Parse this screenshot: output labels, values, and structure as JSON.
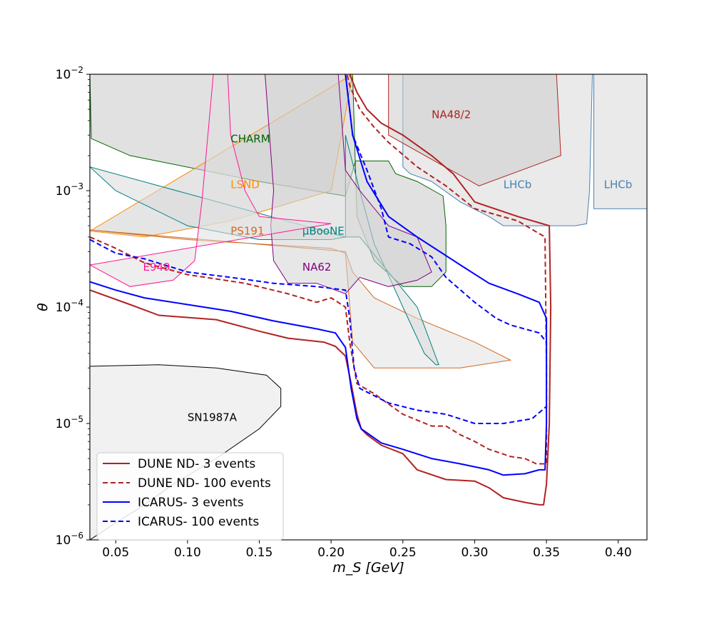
{
  "chart_data": {
    "type": "line",
    "title": "",
    "xlabel": "m_S [GeV]",
    "ylabel": "θ",
    "xscale": "linear",
    "yscale": "log",
    "xlim": [
      0.032,
      0.42
    ],
    "ylim": [
      1e-06,
      0.01
    ],
    "x_ticks": [
      0.05,
      0.1,
      0.15,
      0.2,
      0.25,
      0.3,
      0.35,
      0.4
    ],
    "x_tick_labels": [
      "0.05",
      "0.10",
      "0.15",
      "0.20",
      "0.25",
      "0.30",
      "0.35",
      "0.40"
    ],
    "y_ticks": [
      1e-06,
      1e-05,
      0.0001,
      0.001,
      0.01
    ],
    "y_tick_labels": [
      {
        "base": "10",
        "exp": "−6"
      },
      {
        "base": "10",
        "exp": "−5"
      },
      {
        "base": "10",
        "exp": "−4"
      },
      {
        "base": "10",
        "exp": "−3"
      },
      {
        "base": "10",
        "exp": "−2"
      }
    ],
    "regions": [
      {
        "name": "LHCb",
        "label": "LHCb",
        "color": "#4682b4",
        "fill": "#d8d8d8",
        "label_at": [
          0.39,
          0.00105
        ],
        "points": [
          [
            0.383,
            0.01
          ],
          [
            0.383,
            0.0007
          ],
          [
            0.42,
            0.0007
          ],
          [
            0.42,
            0.01
          ]
        ]
      },
      {
        "name": "LHCb",
        "label": "LHCb",
        "color": "#4682b4",
        "fill": "#d8d8d8",
        "label_at": [
          0.32,
          0.00105
        ],
        "points": [
          [
            0.25,
            0.01
          ],
          [
            0.25,
            0.0016
          ],
          [
            0.255,
            0.0014
          ],
          [
            0.27,
            0.0012
          ],
          [
            0.29,
            0.0008
          ],
          [
            0.31,
            0.0006
          ],
          [
            0.32,
            0.0005
          ],
          [
            0.34,
            0.0005
          ],
          [
            0.37,
            0.0005
          ],
          [
            0.378,
            0.00052
          ],
          [
            0.38,
            0.001
          ],
          [
            0.382,
            0.01
          ]
        ]
      },
      {
        "name": "NA48/2",
        "label": "NA48/2",
        "color": "#b22222",
        "fill": "#cccccc",
        "label_at": [
          0.27,
          0.0042
        ],
        "points": [
          [
            0.24,
            0.01
          ],
          [
            0.24,
            0.003
          ],
          [
            0.303,
            0.0011
          ],
          [
            0.36,
            0.002
          ],
          [
            0.357,
            0.01
          ]
        ]
      },
      {
        "name": "CHARM",
        "label": "CHARM",
        "color": "#006400",
        "fill": "#c8c8c8",
        "label_at": [
          0.13,
          0.0026
        ],
        "points": [
          [
            0.032,
            0.01
          ],
          [
            0.033,
            0.0028
          ],
          [
            0.06,
            0.002
          ],
          [
            0.15,
            0.0012
          ],
          [
            0.21,
            0.0009
          ],
          [
            0.217,
            0.0018
          ],
          [
            0.24,
            0.0018
          ],
          [
            0.245,
            0.0014
          ],
          [
            0.26,
            0.0012
          ],
          [
            0.278,
            0.0009
          ],
          [
            0.28,
            0.0005
          ],
          [
            0.28,
            0.0002
          ],
          [
            0.27,
            0.00015
          ],
          [
            0.25,
            0.00015
          ],
          [
            0.23,
            0.00025
          ],
          [
            0.218,
            0.0006
          ],
          [
            0.215,
            0.01
          ]
        ]
      },
      {
        "name": "LSND",
        "label": "LSND",
        "color": "#ff8c00",
        "fill": "#d0d0d0",
        "label_at": [
          0.13,
          0.00105
        ],
        "points": [
          [
            0.032,
            0.00045
          ],
          [
            0.07,
            0.0004
          ],
          [
            0.13,
            0.00055
          ],
          [
            0.2,
            0.001
          ],
          [
            0.215,
            0.01
          ]
        ]
      },
      {
        "name": "PS191",
        "label": "PS191",
        "color": "#d2691e",
        "fill": "#e2e2e2",
        "label_at": [
          0.13,
          0.00042
        ],
        "points": [
          [
            0.032,
            0.00046
          ],
          [
            0.1,
            0.00038
          ],
          [
            0.2,
            0.00032
          ],
          [
            0.21,
            0.00029
          ],
          [
            0.215,
            5e-05
          ],
          [
            0.23,
            3e-05
          ],
          [
            0.29,
            3e-05
          ],
          [
            0.325,
            3.5e-05
          ],
          [
            0.3,
            5e-05
          ],
          [
            0.26,
            8e-05
          ],
          [
            0.23,
            0.00012
          ],
          [
            0.215,
            0.0002
          ],
          [
            0.21,
            0.0003
          ]
        ]
      },
      {
        "name": "MicroBooNE",
        "label": "μBooNE",
        "color": "#008080",
        "fill": "#dadada",
        "label_at": [
          0.18,
          0.00042
        ],
        "points": [
          [
            0.032,
            0.0016
          ],
          [
            0.05,
            0.001
          ],
          [
            0.1,
            0.0005
          ],
          [
            0.15,
            0.00038
          ],
          [
            0.2,
            0.00038
          ],
          [
            0.21,
            0.0004
          ],
          [
            0.21,
            0.003
          ],
          [
            0.22,
            0.001
          ],
          [
            0.23,
            0.00035
          ],
          [
            0.25,
            0.0001
          ],
          [
            0.265,
            4e-05
          ],
          [
            0.273,
            3.2e-05
          ],
          [
            0.275,
            3.2e-05
          ],
          [
            0.26,
            0.0001
          ],
          [
            0.22,
            0.0004
          ],
          [
            0.21,
            0.0004
          ]
        ]
      },
      {
        "name": "NA62",
        "label": "NA62",
        "color": "#800080",
        "fill": "#d4d4d4",
        "label_at": [
          0.18,
          0.000205
        ],
        "points": [
          [
            0.154,
            0.01
          ],
          [
            0.16,
            0.001
          ],
          [
            0.158,
            0.0005
          ],
          [
            0.16,
            0.00025
          ],
          [
            0.17,
            0.00016
          ],
          [
            0.19,
            0.00016
          ],
          [
            0.21,
            0.00013
          ],
          [
            0.22,
            0.00018
          ],
          [
            0.24,
            0.00015
          ],
          [
            0.26,
            0.00017
          ],
          [
            0.27,
            0.0002
          ],
          [
            0.26,
            0.0004
          ],
          [
            0.24,
            0.0005
          ],
          [
            0.22,
            0.001
          ],
          [
            0.21,
            0.0015
          ],
          [
            0.205,
            0.01
          ]
        ]
      },
      {
        "name": "E949",
        "label": "E949",
        "color": "#ff1493",
        "fill": "#e0e0e0",
        "label_at": [
          0.069,
          0.000205
        ],
        "points": [
          [
            0.032,
            0.00023
          ],
          [
            0.06,
            0.00015
          ],
          [
            0.09,
            0.00017
          ],
          [
            0.105,
            0.00025
          ],
          [
            0.11,
            0.0008
          ],
          [
            0.118,
            0.01
          ],
          [
            0.128,
            0.01
          ],
          [
            0.13,
            0.003
          ],
          [
            0.14,
            0.001
          ],
          [
            0.15,
            0.0006
          ],
          [
            0.18,
            0.00055
          ],
          [
            0.2,
            0.00052
          ]
        ]
      },
      {
        "name": "SN1987A",
        "label": "SN1987A",
        "color": "#000000",
        "fill": "#e6e6e6",
        "label_at": [
          0.1,
          1.05e-05
        ],
        "points": [
          [
            0.032,
            3.1e-05
          ],
          [
            0.08,
            3.2e-05
          ],
          [
            0.12,
            3e-05
          ],
          [
            0.155,
            2.6e-05
          ],
          [
            0.165,
            2e-05
          ],
          [
            0.165,
            1.4e-05
          ],
          [
            0.15,
            9e-06
          ],
          [
            0.12,
            5e-06
          ],
          [
            0.09,
            3e-06
          ],
          [
            0.07,
            2e-06
          ],
          [
            0.05,
            1.4e-06
          ],
          [
            0.032,
            1e-06
          ]
        ]
      }
    ],
    "series": [
      {
        "name": "DUNE ND- 3 events",
        "color": "#b22222",
        "dash": "solid",
        "points": [
          [
            0.032,
            0.00014
          ],
          [
            0.06,
            0.000105
          ],
          [
            0.08,
            8.5e-05
          ],
          [
            0.12,
            7.8e-05
          ],
          [
            0.15,
            6.2e-05
          ],
          [
            0.17,
            5.4e-05
          ],
          [
            0.195,
            5e-05
          ],
          [
            0.203,
            4.6e-05
          ],
          [
            0.21,
            3.8e-05
          ],
          [
            0.214,
            2.2e-05
          ],
          [
            0.218,
            1.2e-05
          ],
          [
            0.221,
            9e-06
          ],
          [
            0.225,
            8e-06
          ],
          [
            0.235,
            6.5e-06
          ],
          [
            0.25,
            5.5e-06
          ],
          [
            0.26,
            4e-06
          ],
          [
            0.28,
            3.3e-06
          ],
          [
            0.3,
            3.2e-06
          ],
          [
            0.31,
            2.8e-06
          ],
          [
            0.32,
            2.3e-06
          ],
          [
            0.335,
            2.1e-06
          ],
          [
            0.345,
            2e-06
          ],
          [
            0.348,
            2e-06
          ],
          [
            0.35,
            3e-06
          ],
          [
            0.352,
            1e-05
          ],
          [
            0.353,
            0.0001
          ],
          [
            0.352,
            0.0005
          ],
          [
            0.33,
            0.0006
          ],
          [
            0.3,
            0.0008
          ],
          [
            0.285,
            0.0014
          ],
          [
            0.27,
            0.002
          ],
          [
            0.25,
            0.003
          ],
          [
            0.235,
            0.0038
          ],
          [
            0.225,
            0.005
          ],
          [
            0.218,
            0.007
          ],
          [
            0.213,
            0.01
          ]
        ]
      },
      {
        "name": "DUNE ND- 100 events",
        "color": "#b22222",
        "dash": "dashed",
        "points": [
          [
            0.032,
            0.0004
          ],
          [
            0.05,
            0.00032
          ],
          [
            0.07,
            0.00024
          ],
          [
            0.1,
            0.00019
          ],
          [
            0.14,
            0.00016
          ],
          [
            0.17,
            0.00013
          ],
          [
            0.19,
            0.00011
          ],
          [
            0.2,
            0.00012
          ],
          [
            0.21,
            0.0001
          ],
          [
            0.213,
            5e-05
          ],
          [
            0.218,
            2.2e-05
          ],
          [
            0.23,
            1.8e-05
          ],
          [
            0.25,
            1.2e-05
          ],
          [
            0.27,
            9.5e-06
          ],
          [
            0.28,
            9.5e-06
          ],
          [
            0.29,
            8e-06
          ],
          [
            0.3,
            7e-06
          ],
          [
            0.31,
            6e-06
          ],
          [
            0.325,
            5.2e-06
          ],
          [
            0.335,
            5e-06
          ],
          [
            0.343,
            4.5e-06
          ],
          [
            0.35,
            4.5e-06
          ],
          [
            0.35,
            3e-05
          ],
          [
            0.349,
            0.0004
          ],
          [
            0.33,
            0.00055
          ],
          [
            0.3,
            0.0007
          ],
          [
            0.28,
            0.0011
          ],
          [
            0.26,
            0.0016
          ],
          [
            0.24,
            0.0026
          ],
          [
            0.23,
            0.0035
          ],
          [
            0.22,
            0.005
          ],
          [
            0.213,
            0.008
          ],
          [
            0.211,
            0.01
          ]
        ]
      },
      {
        "name": "ICARUS- 3 events",
        "color": "#0000ff",
        "dash": "solid",
        "points": [
          [
            0.032,
            0.000165
          ],
          [
            0.05,
            0.00014
          ],
          [
            0.07,
            0.00012
          ],
          [
            0.1,
            0.000105
          ],
          [
            0.13,
            9.2e-05
          ],
          [
            0.16,
            7.6e-05
          ],
          [
            0.19,
            6.5e-05
          ],
          [
            0.203,
            6e-05
          ],
          [
            0.21,
            4.5e-05
          ],
          [
            0.214,
            2e-05
          ],
          [
            0.218,
            1.1e-05
          ],
          [
            0.221,
            9e-06
          ],
          [
            0.235,
            6.8e-06
          ],
          [
            0.25,
            6e-06
          ],
          [
            0.27,
            5e-06
          ],
          [
            0.29,
            4.5e-06
          ],
          [
            0.31,
            4e-06
          ],
          [
            0.32,
            3.6e-06
          ],
          [
            0.335,
            3.7e-06
          ],
          [
            0.345,
            4e-06
          ],
          [
            0.349,
            4e-06
          ],
          [
            0.35,
            1e-05
          ],
          [
            0.35,
            8e-05
          ],
          [
            0.345,
            0.00011
          ],
          [
            0.33,
            0.00013
          ],
          [
            0.31,
            0.00016
          ],
          [
            0.29,
            0.00023
          ],
          [
            0.26,
            0.0004
          ],
          [
            0.24,
            0.0006
          ],
          [
            0.225,
            0.0012
          ],
          [
            0.215,
            0.003
          ],
          [
            0.21,
            0.01
          ]
        ]
      },
      {
        "name": "ICARUS- 100 events",
        "color": "#0000ff",
        "dash": "dashed",
        "points": [
          [
            0.032,
            0.00038
          ],
          [
            0.05,
            0.00029
          ],
          [
            0.07,
            0.00026
          ],
          [
            0.1,
            0.0002
          ],
          [
            0.13,
            0.00018
          ],
          [
            0.16,
            0.00016
          ],
          [
            0.19,
            0.00015
          ],
          [
            0.21,
            0.00014
          ],
          [
            0.213,
            8e-05
          ],
          [
            0.216,
            3e-05
          ],
          [
            0.22,
            2e-05
          ],
          [
            0.24,
            1.5e-05
          ],
          [
            0.26,
            1.3e-05
          ],
          [
            0.28,
            1.2e-05
          ],
          [
            0.3,
            1e-05
          ],
          [
            0.32,
            1e-05
          ],
          [
            0.34,
            1.1e-05
          ],
          [
            0.35,
            1.4e-05
          ],
          [
            0.35,
            5e-05
          ],
          [
            0.345,
            6e-05
          ],
          [
            0.325,
            7e-05
          ],
          [
            0.315,
            8e-05
          ],
          [
            0.3,
            0.00011
          ],
          [
            0.28,
            0.00018
          ],
          [
            0.27,
            0.00027
          ],
          [
            0.255,
            0.00035
          ],
          [
            0.24,
            0.0004
          ],
          [
            0.235,
            0.0007
          ],
          [
            0.225,
            0.0015
          ],
          [
            0.215,
            0.003
          ],
          [
            0.21,
            0.01
          ]
        ]
      }
    ],
    "legend": {
      "position": "lower-left",
      "entries": [
        {
          "label": "DUNE ND- 3 events",
          "color": "#b22222",
          "dash": "solid"
        },
        {
          "label": "DUNE ND- 100 events",
          "color": "#b22222",
          "dash": "dashed"
        },
        {
          "label": "ICARUS- 3 events",
          "color": "#0000ff",
          "dash": "solid"
        },
        {
          "label": "ICARUS- 100 events",
          "color": "#0000ff",
          "dash": "dashed"
        }
      ]
    }
  }
}
